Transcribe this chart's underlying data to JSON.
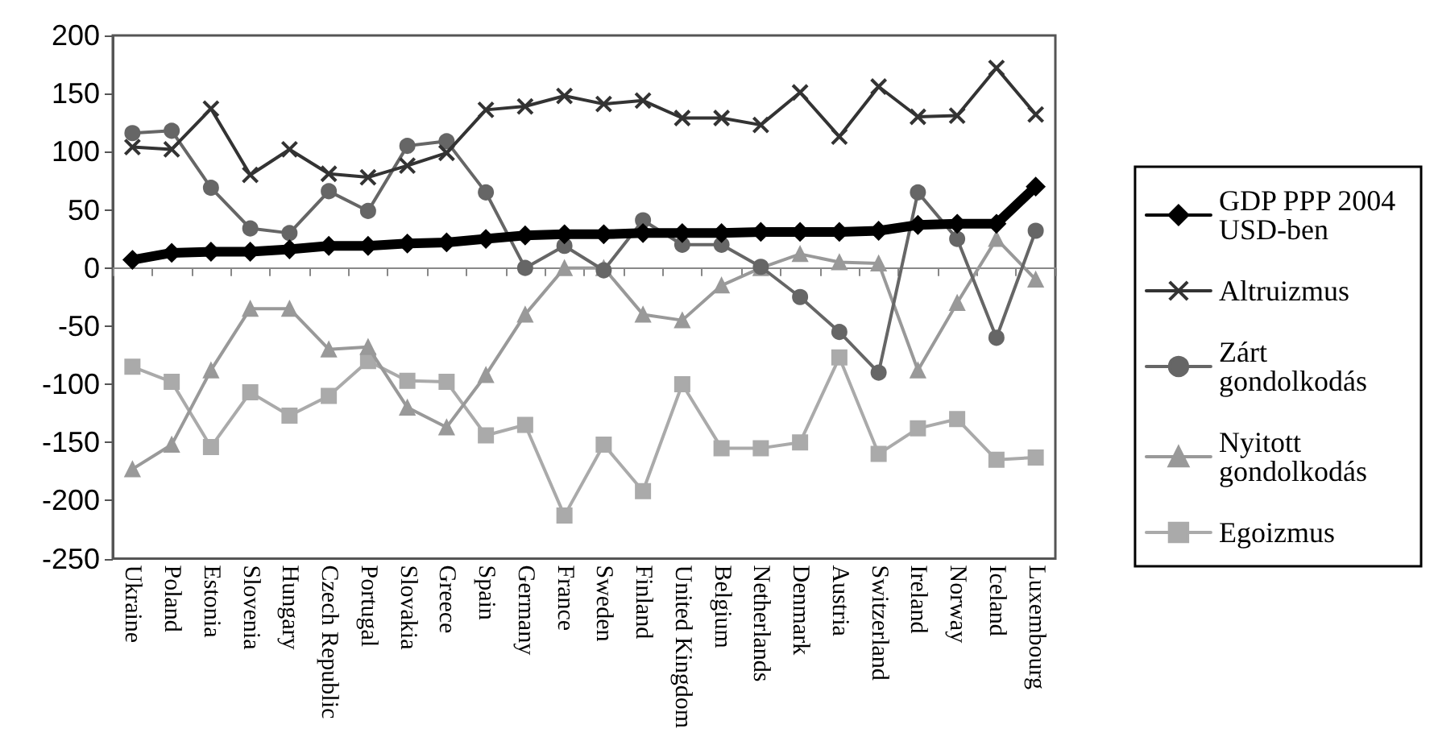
{
  "chart_data": {
    "type": "line",
    "categories": [
      "Ukraine",
      "Poland",
      "Estonia",
      "Slovenia",
      "Hungary",
      "Czech Republic",
      "Portugal",
      "Slovakia",
      "Greece",
      "Spain",
      "Germany",
      "France",
      "Sweden",
      "Finland",
      "United Kingdom",
      "Belgium",
      "Netherlands",
      "Denmark",
      "Austria",
      "Switzerland",
      "Ireland",
      "Norway",
      "Iceland",
      "Luxembourg"
    ],
    "series": [
      {
        "name": "GDP PPP 2004 USD-ben",
        "color": "#000000",
        "marker": "diamond",
        "values": [
          7,
          13,
          14,
          14,
          16,
          19,
          19,
          21,
          22,
          25,
          28,
          29,
          29,
          30,
          30,
          30,
          31,
          31,
          31,
          32,
          37,
          38,
          38,
          70
        ]
      },
      {
        "name": "Altruizmus",
        "color": "#333333",
        "marker": "cross",
        "values": [
          104,
          102,
          137,
          80,
          102,
          81,
          78,
          88,
          99,
          136,
          139,
          148,
          141,
          144,
          129,
          129,
          123,
          151,
          113,
          156,
          130,
          131,
          172,
          132
        ]
      },
      {
        "name": "Zárt gondolkodás",
        "color": "#666666",
        "marker": "circle",
        "values": [
          116,
          118,
          69,
          34,
          30,
          66,
          49,
          105,
          109,
          65,
          0,
          19,
          -2,
          41,
          20,
          20,
          1,
          -25,
          -55,
          -90,
          65,
          25,
          -60,
          32
        ]
      },
      {
        "name": "Nyitott gondolkodás",
        "color": "#999999",
        "marker": "triangle",
        "values": [
          -173,
          -152,
          -88,
          -35,
          -35,
          -70,
          -68,
          -120,
          -137,
          -92,
          -40,
          0,
          0,
          -40,
          -45,
          -15,
          0,
          12,
          5,
          4,
          -88,
          -30,
          25,
          -10
        ]
      },
      {
        "name": "Egoizmus",
        "color": "#aaaaaa",
        "marker": "square",
        "values": [
          -85,
          -98,
          -154,
          -107,
          -127,
          -110,
          -80,
          -97,
          -98,
          -144,
          -135,
          -213,
          -152,
          -192,
          -100,
          -155,
          -155,
          -150,
          -77,
          -160,
          -138,
          -130,
          -165,
          -163
        ]
      }
    ],
    "ylim": [
      -250,
      200
    ],
    "yticks": [
      -250,
      -200,
      -150,
      -100,
      -50,
      0,
      50,
      100,
      150,
      200
    ],
    "legend": "right"
  }
}
